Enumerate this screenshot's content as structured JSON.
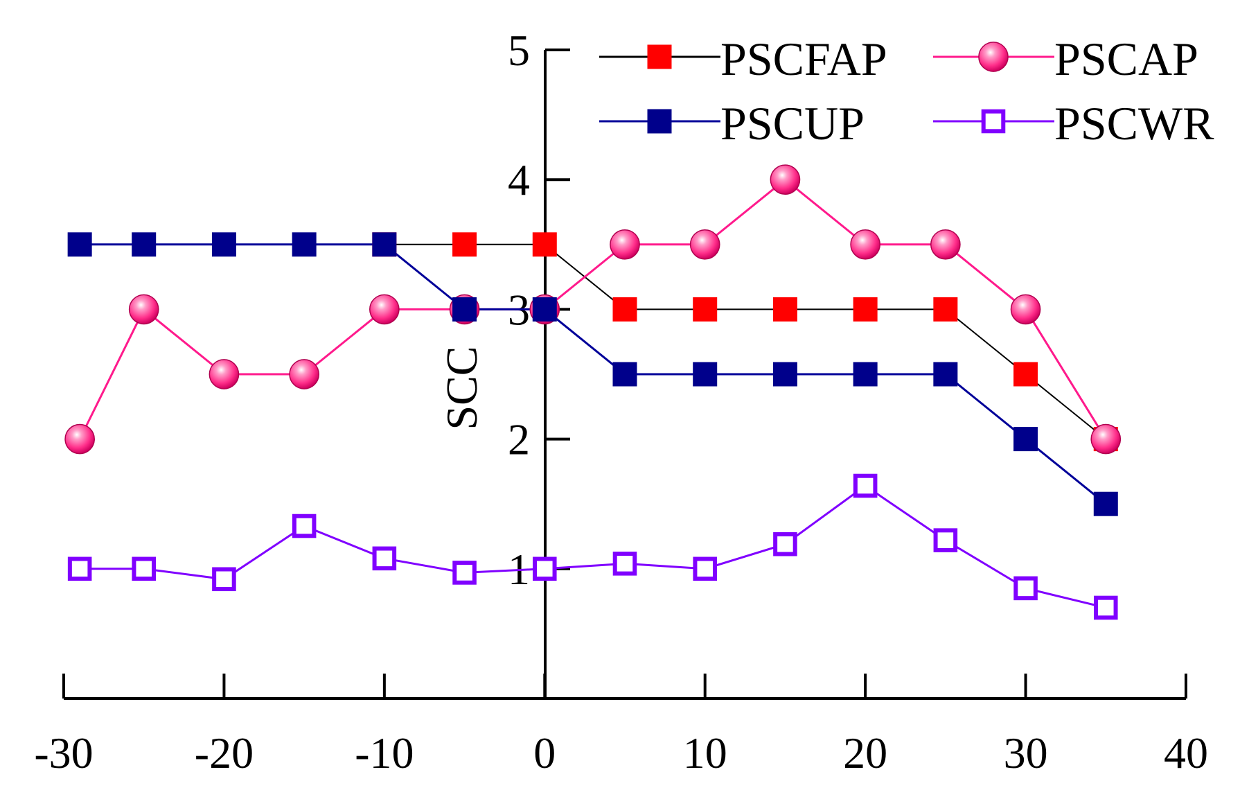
{
  "chart_data": {
    "type": "line",
    "title": "",
    "xlabel": "",
    "ylabel": "SCC",
    "xlim": [
      -30,
      40
    ],
    "ylim": [
      0,
      5
    ],
    "x_ticks": [
      "-30",
      "-20",
      "-10",
      "0",
      "10",
      "20",
      "30",
      "40"
    ],
    "y_ticks": [
      "1",
      "2",
      "3",
      "4",
      "5"
    ],
    "legend": "top-right",
    "x": [
      -29,
      -25,
      -20,
      -15,
      -10,
      -5,
      0,
      5,
      10,
      15,
      20,
      25,
      30,
      35
    ],
    "series": [
      {
        "name": "PSCFAP",
        "line_color": "#000000",
        "marker_color": "#ff0000",
        "marker": "filled-square",
        "x": [
          -10,
          -5,
          0,
          5,
          10,
          15,
          20,
          25,
          30,
          35
        ],
        "values": [
          3.5,
          3.5,
          3.5,
          3.0,
          3.0,
          3.0,
          3.0,
          3.0,
          2.5,
          2.0
        ]
      },
      {
        "name": "PSCAP",
        "line_color": "#ff1a8c",
        "marker_color": "#ff3399",
        "marker": "sphere",
        "x": [
          -29,
          -25,
          -20,
          -15,
          -10,
          -5,
          0,
          5,
          10,
          15,
          20,
          25,
          30,
          35
        ],
        "values": [
          2.0,
          3.0,
          2.5,
          2.5,
          3.0,
          3.0,
          3.0,
          3.5,
          3.5,
          4.0,
          3.5,
          3.5,
          3.0,
          2.0
        ]
      },
      {
        "name": "PSCUP",
        "line_color": "#000099",
        "marker_color": "#00008b",
        "marker": "filled-square",
        "x": [
          -29,
          -25,
          -20,
          -15,
          -10,
          -5,
          0,
          5,
          10,
          15,
          20,
          25,
          30,
          35
        ],
        "values": [
          3.5,
          3.5,
          3.5,
          3.5,
          3.5,
          3.0,
          3.0,
          2.5,
          2.5,
          2.5,
          2.5,
          2.5,
          2.0,
          1.5
        ]
      },
      {
        "name": "PSCWR",
        "line_color": "#8000ff",
        "marker_color": "#8000ff",
        "marker": "open-square",
        "x": [
          -29,
          -25,
          -20,
          -15,
          -10,
          -5,
          0,
          5,
          10,
          15,
          20,
          25,
          30,
          35
        ],
        "values": [
          1.0,
          1.0,
          0.92,
          1.33,
          1.08,
          0.97,
          1.0,
          1.04,
          1.0,
          1.19,
          1.64,
          1.22,
          0.85,
          0.7
        ]
      }
    ]
  }
}
